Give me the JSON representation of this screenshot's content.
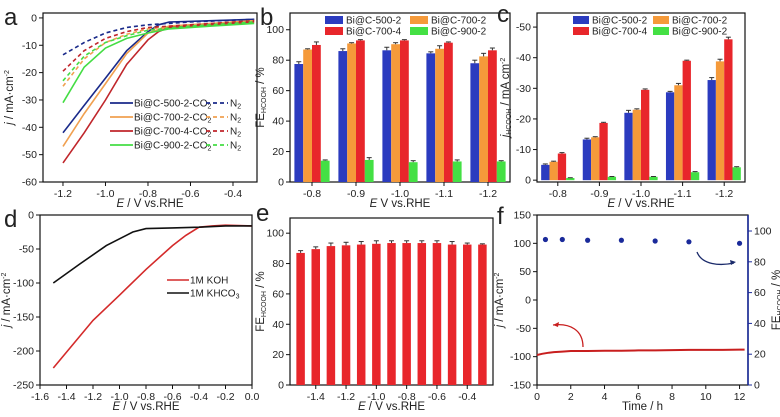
{
  "chart_data": [
    {
      "panel": "a",
      "type": "line",
      "xlabel": {
        "main": "E",
        "unit": " / V vs.RHE"
      },
      "ylabel": {
        "main": "j",
        "unit": " / mA·cm",
        "sup": "-2"
      },
      "xlim": [
        -1.294,
        -0.287
      ],
      "ylim": [
        -60,
        1.8
      ],
      "x_ticks": [
        -1.2,
        -1.0,
        -0.8,
        -0.6,
        -0.4
      ],
      "x_tick_labels": [
        "-1.2",
        "-1.0",
        "-0.8",
        "-0.6",
        "-0.4"
      ],
      "y_ticks": [
        0,
        -10,
        -20,
        -30,
        -40,
        -50,
        -60
      ],
      "y_tick_labels": [
        "0",
        "-10",
        "-20",
        "-30",
        "-40",
        "-50",
        "-60"
      ],
      "series": [
        {
          "name": "Bi@C-500-2-CO",
          "sub": "2",
          "color": "#1a2a8a",
          "dash": false,
          "x": [
            -1.2,
            -1.1,
            -1.0,
            -0.9,
            -0.8,
            -0.75,
            -0.7,
            -0.5,
            -0.3
          ],
          "y": [
            -42,
            -32,
            -22,
            -12,
            -5,
            -2.5,
            -1.5,
            -1,
            -0.5
          ]
        },
        {
          "name": "N",
          "sub": "2",
          "color": "#1a2a8a",
          "dash": true,
          "x": [
            -1.2,
            -1.1,
            -1.0,
            -0.9,
            -0.8,
            -0.6,
            -0.3
          ],
          "y": [
            -13.5,
            -9,
            -5.5,
            -3.5,
            -2.5,
            -1.5,
            -0.5
          ]
        },
        {
          "name": "Bi@C-700-2-CO",
          "sub": "2",
          "color": "#f0a050",
          "dash": false,
          "x": [
            -1.2,
            -1.1,
            -1.0,
            -0.9,
            -0.8,
            -0.7,
            -0.5,
            -0.3
          ],
          "y": [
            -47,
            -35,
            -24,
            -13,
            -5.5,
            -3,
            -2,
            -1
          ]
        },
        {
          "name": "N",
          "sub": "2",
          "color": "#f0a050",
          "dash": true,
          "x": [
            -1.2,
            -1.1,
            -1.0,
            -0.9,
            -0.8,
            -0.6,
            -0.3
          ],
          "y": [
            -25,
            -15,
            -9,
            -6,
            -4,
            -2.5,
            -1
          ]
        },
        {
          "name": "Bi@C-700-4-CO",
          "sub": "2",
          "color": "#c0262b",
          "dash": false,
          "x": [
            -1.2,
            -1.1,
            -1.0,
            -0.9,
            -0.8,
            -0.75,
            -0.7,
            -0.5,
            -0.3
          ],
          "y": [
            -53,
            -42,
            -30,
            -17,
            -8,
            -5,
            -3.5,
            -2.5,
            -1.5
          ]
        },
        {
          "name": "N",
          "sub": "2",
          "color": "#c0262b",
          "dash": true,
          "x": [
            -1.2,
            -1.1,
            -1.0,
            -0.9,
            -0.8,
            -0.6,
            -0.3
          ],
          "y": [
            -19.5,
            -12,
            -7.5,
            -5,
            -3.5,
            -2.5,
            -1
          ]
        },
        {
          "name": "Bi@C-900-2-CO",
          "sub": "2",
          "color": "#44dd44",
          "dash": false,
          "x": [
            -1.2,
            -1.1,
            -1.0,
            -0.9,
            -0.8,
            -0.7,
            -0.5,
            -0.3
          ],
          "y": [
            -31,
            -18,
            -11,
            -7.5,
            -5.5,
            -4,
            -3,
            -2
          ]
        },
        {
          "name": "N",
          "sub": "2",
          "color": "#44dd44",
          "dash": true,
          "x": [
            -1.2,
            -1.1,
            -1.0,
            -0.9,
            -0.8,
            -0.6,
            -0.3
          ],
          "y": [
            -23,
            -14,
            -9,
            -6.5,
            -4.5,
            -3,
            -1.5
          ]
        }
      ]
    },
    {
      "panel": "b",
      "type": "bar",
      "xlabel": {
        "main": "E",
        "unit": " V vs.RHE"
      },
      "ylabel": {
        "main": "FE",
        "sub": "HCOOH",
        "unit": " / %"
      },
      "categories": [
        "-0.8",
        "-0.9",
        "-1.0",
        "-1.1",
        "-1.2"
      ],
      "ylim": [
        0,
        111
      ],
      "y_ticks": [
        0,
        20,
        40,
        60,
        80,
        100
      ],
      "y_tick_labels": [
        "0",
        "20",
        "40",
        "60",
        "80",
        "100"
      ],
      "series": [
        {
          "name": "Bi@C-500-2",
          "color": "#2b3bbf",
          "values": [
            77.5,
            86,
            86.5,
            84.5,
            78
          ],
          "errors": [
            1.5,
            1.5,
            2,
            1,
            2
          ]
        },
        {
          "name": "Bi@C-700-2",
          "color": "#f59a3a",
          "values": [
            87,
            91,
            90.5,
            87.5,
            82.5
          ],
          "errors": [
            0.5,
            0.5,
            1,
            2,
            2
          ]
        },
        {
          "name": "Bi@C-700-4",
          "color": "#e8262b",
          "values": [
            90,
            93,
            93,
            91.5,
            86.5
          ],
          "errors": [
            2,
            0.5,
            0.5,
            0.5,
            1.5
          ]
        },
        {
          "name": "Bi@C-900-2",
          "color": "#44e044",
          "values": [
            14,
            14.5,
            13,
            13.5,
            13.5
          ],
          "errors": [
            0.5,
            1.5,
            1,
            1,
            0.5
          ]
        }
      ]
    },
    {
      "panel": "c",
      "type": "bar",
      "xlabel": {
        "main": "E",
        "unit": " / V vs.RHE"
      },
      "ylabel": {
        "main": "j",
        "sub": "HCOOH",
        "unit": " / mA cm",
        "sup": "-2"
      },
      "categories": [
        "-0.8",
        "-0.9",
        "-1.0",
        "-1.1",
        "-1.2"
      ],
      "ylim": [
        0.6,
        -54.6
      ],
      "y_ticks": [
        0,
        -10,
        -20,
        -30,
        -40,
        -50
      ],
      "y_tick_labels": [
        "0",
        "-10",
        "-20",
        "-30",
        "-40",
        "-50"
      ],
      "series": [
        {
          "name": "Bi@C-500-2",
          "color": "#2b3bbf",
          "values": [
            -5,
            -13.3,
            -22,
            -28.7,
            -32.7
          ],
          "errors": [
            0.3,
            0.4,
            0.8,
            0.3,
            0.8
          ]
        },
        {
          "name": "Bi@C-700-2",
          "color": "#f59a3a",
          "values": [
            -6,
            -14,
            -23,
            -31,
            -38.8
          ],
          "errors": [
            0.2,
            0.2,
            0.3,
            0.6,
            0.7
          ]
        },
        {
          "name": "Bi@C-700-4",
          "color": "#e8262b",
          "values": [
            -8.7,
            -18.7,
            -29.5,
            -39,
            -46
          ],
          "errors": [
            0.3,
            0.2,
            0.3,
            0.2,
            0.7
          ]
        },
        {
          "name": "Bi@C-900-2",
          "color": "#44e044",
          "values": [
            -0.7,
            -1.1,
            -1.1,
            -2.6,
            -4.2
          ],
          "errors": [
            0.1,
            0.1,
            0.1,
            0.2,
            0.2
          ]
        }
      ]
    },
    {
      "panel": "d",
      "type": "line",
      "xlabel": {
        "main": "E",
        "unit": " / V vs.RHE"
      },
      "ylabel": {
        "main": "j",
        "unit": " / mA·cm",
        "sup": "-2"
      },
      "xlim": [
        -1.6,
        0.0
      ],
      "ylim": [
        -250,
        0
      ],
      "x_ticks": [
        -1.6,
        -1.4,
        -1.2,
        -1.0,
        -0.8,
        -0.6,
        -0.4,
        -0.2,
        0.0
      ],
      "x_tick_labels": [
        "-1.6",
        "-1.4",
        "-1.2",
        "-1.0",
        "-0.8",
        "-0.6",
        "-0.4",
        "-0.2",
        "0.0"
      ],
      "y_ticks": [
        0,
        -50,
        -100,
        -150,
        -200,
        -250
      ],
      "y_tick_labels": [
        "0",
        "-50",
        "-100",
        "-150",
        "-200",
        "-250"
      ],
      "series": [
        {
          "name": "1M KOH",
          "color": "#d42a2a",
          "dash": false,
          "x": [
            -1.5,
            -1.2,
            -1.0,
            -0.8,
            -0.6,
            -0.5,
            -0.4,
            -0.3,
            -0.2,
            0.0
          ],
          "y": [
            -225,
            -155,
            -118,
            -80,
            -45,
            -30,
            -18,
            -16,
            -15,
            -16
          ]
        },
        {
          "name": "1M KHCO",
          "sub": "3",
          "color": "#111111",
          "dash": false,
          "x": [
            -1.5,
            -1.3,
            -1.1,
            -0.9,
            -0.8,
            -0.6,
            -0.4,
            -0.2,
            0.0
          ],
          "y": [
            -100,
            -72,
            -45,
            -25,
            -20,
            -19,
            -18,
            -16,
            -16
          ]
        }
      ]
    },
    {
      "panel": "e",
      "type": "bar",
      "xlabel": {
        "main": "E",
        "unit": " / V vs.RHE"
      },
      "ylabel": {
        "main": "FE",
        "sub": "HCOOH",
        "unit": " / %"
      },
      "x": [
        -1.5,
        -1.4,
        -1.3,
        -1.2,
        -1.1,
        -1.0,
        -0.9,
        -0.8,
        -0.7,
        -0.6,
        -0.5,
        -0.4,
        -0.3
      ],
      "xlim": [
        -1.57,
        -0.23
      ],
      "ylim": [
        0,
        110
      ],
      "x_ticks": [
        -1.4,
        -1.2,
        -1.0,
        -0.8,
        -0.6,
        -0.4
      ],
      "x_tick_labels": [
        "-1.4",
        "-1.2",
        "-1.0",
        "-0.8",
        "-0.6",
        "-0.4"
      ],
      "y_ticks": [
        0,
        20,
        40,
        60,
        80,
        100
      ],
      "y_tick_labels": [
        "0",
        "20",
        "40",
        "60",
        "80",
        "100"
      ],
      "series": [
        {
          "name": "FE",
          "color": "#e8262b",
          "values": [
            87,
            89.5,
            91.5,
            92,
            92.5,
            93,
            93.5,
            93.5,
            93.5,
            93.5,
            92.5,
            92.5,
            92.5
          ],
          "errors": [
            1.5,
            1.5,
            2,
            2,
            2,
            2,
            1.5,
            1.5,
            1.5,
            1.5,
            2,
            1,
            0.5
          ]
        }
      ]
    },
    {
      "panel": "f",
      "type": "line+scatter",
      "xlabel": {
        "main": "Time / h"
      },
      "ylabel": {
        "main": "j",
        "unit": " / mA·cm",
        "sup": "-2"
      },
      "y2label": {
        "main": "FE",
        "sub": "HCOOH",
        "unit": " / %"
      },
      "xlim": [
        0,
        12.5
      ],
      "ylim": [
        -150,
        150
      ],
      "y2lim": [
        0,
        110.4
      ],
      "x_ticks": [
        0,
        2,
        4,
        6,
        8,
        10,
        12
      ],
      "x_tick_labels": [
        "0",
        "2",
        "4",
        "6",
        "8",
        "10",
        "12"
      ],
      "y_ticks": [
        -150,
        -100,
        -50,
        0,
        50,
        100,
        150
      ],
      "y_tick_labels": [
        "-150",
        "-100",
        "-50",
        "0",
        "50",
        "100",
        "150"
      ],
      "y2_ticks": [
        0,
        20,
        40,
        60,
        80,
        100
      ],
      "y2_tick_labels": [
        "0",
        "20",
        "40",
        "60",
        "80",
        "100"
      ],
      "current": {
        "color": "#c81e1e",
        "x": [
          0,
          0.3,
          0.7,
          1,
          1.5,
          2,
          3,
          4,
          5,
          6,
          7,
          8,
          9,
          10,
          11,
          12,
          12.3
        ],
        "y": [
          -97,
          -95,
          -93,
          -92,
          -91,
          -90,
          -90,
          -89.5,
          -89.5,
          -89,
          -89,
          -88.5,
          -88,
          -88,
          -88,
          -87.5,
          -87.5
        ]
      },
      "fe": {
        "color": "#1a2a9a",
        "x": [
          0.5,
          1.5,
          3,
          5,
          7,
          9,
          12
        ],
        "y": [
          94.5,
          94.5,
          94,
          94,
          93.5,
          93,
          92
        ]
      }
    }
  ],
  "panel_letters": [
    "a",
    "b",
    "c",
    "d",
    "e",
    "f"
  ]
}
